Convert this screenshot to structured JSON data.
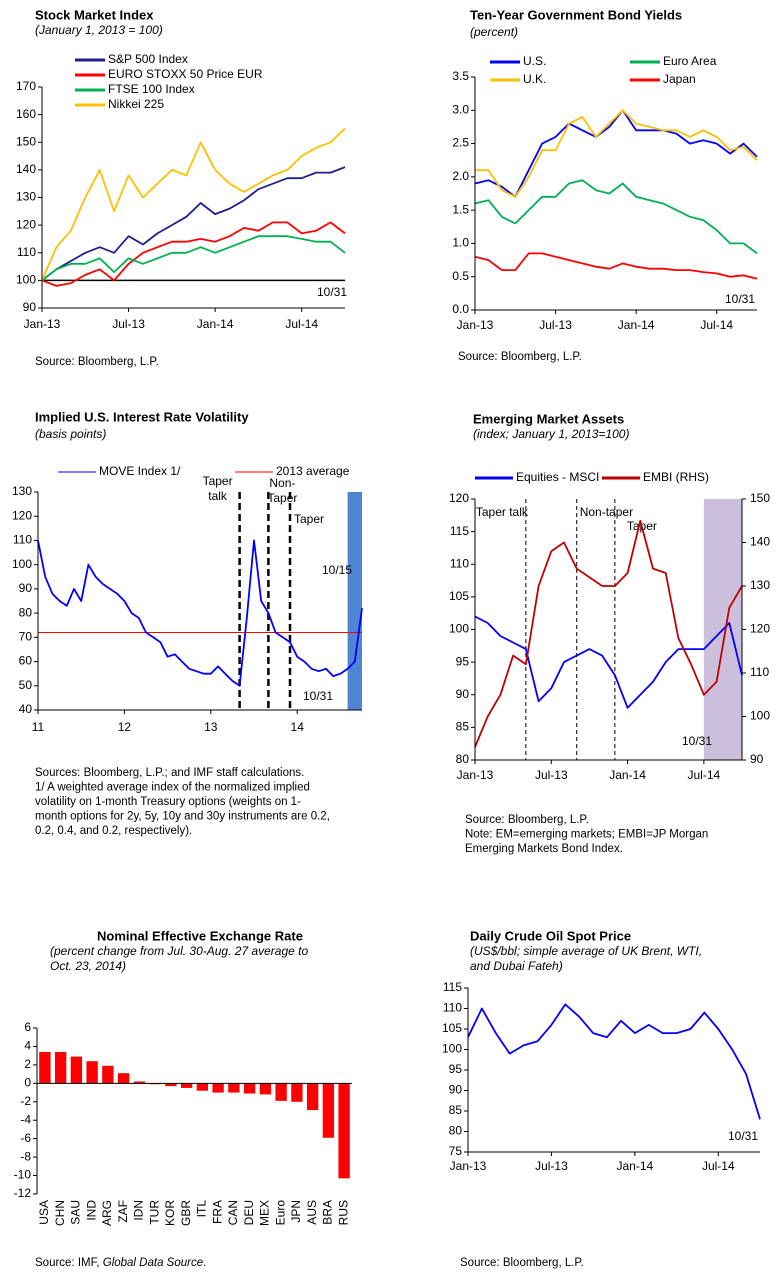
{
  "chart_data": [
    {
      "type": "line",
      "title": "Stock Market Index",
      "subtitle": [
        "(January 1, 2013 = 100)"
      ],
      "x": [
        "2013-01",
        "2013-02",
        "2013-03",
        "2013-04",
        "2013-05",
        "2013-06",
        "2013-07",
        "2013-08",
        "2013-09",
        "2013-10",
        "2013-11",
        "2013-12",
        "2014-01",
        "2014-02",
        "2014-03",
        "2014-04",
        "2014-05",
        "2014-06",
        "2014-07",
        "2014-08",
        "2014-09",
        "2014-10"
      ],
      "series": [
        {
          "name": "S&P 500 Index",
          "color": "#1f1f8f",
          "values": [
            100,
            104,
            107,
            110,
            112,
            110,
            116,
            113,
            117,
            120,
            123,
            128,
            124,
            126,
            129,
            133,
            135,
            137,
            137,
            139,
            139,
            141
          ]
        },
        {
          "name": "EURO STOXX 50 Price EUR",
          "color": "#ff0000",
          "values": [
            100,
            98,
            99,
            102,
            104,
            100,
            106,
            110,
            112,
            114,
            114,
            115,
            114,
            116,
            119,
            118,
            121,
            121,
            117,
            118,
            121,
            117
          ]
        },
        {
          "name": "FTSE 100 Index",
          "color": "#00b050",
          "values": [
            100,
            104,
            106,
            106,
            108,
            103,
            108,
            106,
            108,
            110,
            110,
            112,
            110,
            112,
            114,
            116,
            116,
            116,
            115,
            114,
            114,
            110
          ]
        },
        {
          "name": "Nikkei 225",
          "color": "#ffc000",
          "values": [
            100,
            112,
            118,
            130,
            140,
            125,
            138,
            130,
            135,
            140,
            138,
            150,
            140,
            135,
            132,
            135,
            138,
            140,
            145,
            148,
            150,
            155
          ]
        }
      ],
      "reference_line": {
        "value": 100,
        "color": "#000000"
      },
      "xlim": [
        "2013-01",
        "2014-10"
      ],
      "xticks": [
        {
          "value": "2013-01",
          "label": "Jan-13"
        },
        {
          "value": "2013-07",
          "label": "Jul-13"
        },
        {
          "value": "2014-01",
          "label": "Jan-14"
        },
        {
          "value": "2014-07",
          "label": "Jul-14"
        }
      ],
      "ylim": [
        90,
        170
      ],
      "yticks": [
        90,
        100,
        110,
        120,
        130,
        140,
        150,
        160,
        170
      ],
      "end_label": "10/31",
      "source": "Source: Bloomberg, L.P."
    },
    {
      "type": "line",
      "title": "Ten-Year Government Bond Yields",
      "subtitle": [
        "(percent)"
      ],
      "x": [
        "2013-01",
        "2013-02",
        "2013-03",
        "2013-04",
        "2013-05",
        "2013-06",
        "2013-07",
        "2013-08",
        "2013-09",
        "2013-10",
        "2013-11",
        "2013-12",
        "2014-01",
        "2014-02",
        "2014-03",
        "2014-04",
        "2014-05",
        "2014-06",
        "2014-07",
        "2014-08",
        "2014-09",
        "2014-10"
      ],
      "series": [
        {
          "name": "U.S.",
          "color": "#0000ff",
          "values": [
            1.9,
            1.95,
            1.85,
            1.7,
            2.1,
            2.5,
            2.6,
            2.8,
            2.7,
            2.6,
            2.75,
            3.0,
            2.7,
            2.7,
            2.7,
            2.65,
            2.5,
            2.55,
            2.5,
            2.35,
            2.5,
            2.3
          ]
        },
        {
          "name": "Euro Area",
          "color": "#00b050",
          "values": [
            1.6,
            1.65,
            1.4,
            1.3,
            1.5,
            1.7,
            1.7,
            1.9,
            1.95,
            1.8,
            1.75,
            1.9,
            1.7,
            1.65,
            1.6,
            1.5,
            1.4,
            1.35,
            1.2,
            1.0,
            1.0,
            0.85
          ]
        },
        {
          "name": "U.K.",
          "color": "#ffc000",
          "values": [
            2.1,
            2.1,
            1.8,
            1.7,
            2.0,
            2.4,
            2.4,
            2.8,
            2.9,
            2.6,
            2.8,
            3.0,
            2.8,
            2.75,
            2.7,
            2.7,
            2.6,
            2.7,
            2.6,
            2.4,
            2.45,
            2.25
          ]
        },
        {
          "name": "Japan",
          "color": "#ff0000",
          "values": [
            0.8,
            0.75,
            0.6,
            0.6,
            0.85,
            0.85,
            0.8,
            0.75,
            0.7,
            0.65,
            0.62,
            0.7,
            0.65,
            0.62,
            0.62,
            0.6,
            0.6,
            0.57,
            0.55,
            0.5,
            0.52,
            0.47
          ]
        }
      ],
      "xlim": [
        "2013-01",
        "2014-10"
      ],
      "xticks": [
        {
          "value": "2013-01",
          "label": "Jan-13"
        },
        {
          "value": "2013-07",
          "label": "Jul-13"
        },
        {
          "value": "2014-01",
          "label": "Jan-14"
        },
        {
          "value": "2014-07",
          "label": "Jul-14"
        }
      ],
      "ylim": [
        0,
        3.5
      ],
      "yticks": [
        {
          "value": 0,
          "label": "0.0"
        },
        0.5,
        {
          "value": 1,
          "label": "1.0"
        },
        1.5,
        {
          "value": 2,
          "label": "2.0"
        },
        2.5,
        {
          "value": 3,
          "label": "3.0"
        },
        3.5
      ],
      "end_label": "10/31",
      "source": "Source: Bloomberg, L.P."
    },
    {
      "type": "line",
      "title": "Implied U.S. Interest Rate Volatility",
      "subtitle": [
        "(basis points)"
      ],
      "x": [
        "2011-01",
        "2011-02",
        "2011-03",
        "2011-04",
        "2011-05",
        "2011-06",
        "2011-07",
        "2011-08",
        "2011-09",
        "2011-10",
        "2011-11",
        "2011-12",
        "2012-01",
        "2012-02",
        "2012-03",
        "2012-04",
        "2012-05",
        "2012-06",
        "2012-07",
        "2012-08",
        "2012-09",
        "2012-10",
        "2012-11",
        "2012-12",
        "2013-01",
        "2013-02",
        "2013-03",
        "2013-04",
        "2013-05",
        "2013-06",
        "2013-07",
        "2013-08",
        "2013-09",
        "2013-10",
        "2013-11",
        "2013-12",
        "2014-01",
        "2014-02",
        "2014-03",
        "2014-04",
        "2014-05",
        "2014-06",
        "2014-07",
        "2014-08",
        "2014-09",
        "2014-10"
      ],
      "series": [
        {
          "name": "MOVE  Index 1/",
          "color": "#0000ff",
          "values": [
            110,
            95,
            88,
            85,
            83,
            90,
            85,
            100,
            95,
            92,
            90,
            88,
            85,
            80,
            78,
            72,
            70,
            68,
            62,
            63,
            60,
            57,
            56,
            55,
            55,
            58,
            55,
            52,
            50,
            78,
            110,
            85,
            80,
            72,
            70,
            68,
            62,
            60,
            57,
            56,
            57,
            54,
            55,
            57,
            60,
            82
          ]
        }
      ],
      "reference_line": {
        "name": "2013 average",
        "value": 72,
        "color": "#ff0000"
      },
      "events": [
        {
          "x": "2013-05",
          "label": [
            "Taper",
            "talk"
          ]
        },
        {
          "x": "2013-09",
          "label": [
            "Non-",
            "Taper"
          ]
        },
        {
          "x": "2013-12",
          "label": [
            "Taper"
          ]
        }
      ],
      "shade": {
        "from": "2014-08",
        "to": "2014-10",
        "color": "#4f86d4"
      },
      "xlim": [
        "2011-01",
        "2014-10"
      ],
      "xticks": [
        {
          "value": "2011-01",
          "label": "11"
        },
        {
          "value": "2012-01",
          "label": "12"
        },
        {
          "value": "2013-01",
          "label": "13"
        },
        {
          "value": "2014-01",
          "label": "14"
        }
      ],
      "ylim": [
        40,
        130
      ],
      "yticks": [
        40,
        50,
        60,
        70,
        80,
        90,
        100,
        110,
        120,
        130
      ],
      "peak_label": "10/15",
      "end_label": "10/31",
      "source": "Sources: Bloomberg, L.P.; and IMF staff calculations.",
      "notes": [
        "1/ A weighted average index of the normalized implied",
        "volatility on 1-month Treasury options (weights on 1-",
        "month options for 2y, 5y, 10y and 30y instruments are 0.2,",
        "0.2, 0.4, and 0.2, respectively)."
      ]
    },
    {
      "type": "line",
      "title": "Emerging Market Assets",
      "subtitle": [
        "(index; January 1, 2013=100)"
      ],
      "x": [
        "2013-01",
        "2013-02",
        "2013-03",
        "2013-04",
        "2013-05",
        "2013-06",
        "2013-07",
        "2013-08",
        "2013-09",
        "2013-10",
        "2013-11",
        "2013-12",
        "2014-01",
        "2014-02",
        "2014-03",
        "2014-04",
        "2014-05",
        "2014-06",
        "2014-07",
        "2014-08",
        "2014-09",
        "2014-10"
      ],
      "series": [
        {
          "name": "Equities - MSCI",
          "color": "#0000ff",
          "values": [
            102,
            101,
            99,
            98,
            97,
            89,
            91,
            95,
            96,
            97,
            96,
            93,
            88,
            90,
            92,
            95,
            97,
            97,
            97,
            99,
            101,
            93
          ]
        },
        {
          "name": "EMBI (RHS)",
          "color": "#c00000",
          "axis": "y2",
          "values": [
            93,
            100,
            105,
            114,
            112,
            130,
            138,
            140,
            134,
            132,
            130,
            130,
            133,
            145,
            134,
            133,
            118,
            112,
            105,
            108,
            125,
            130
          ]
        }
      ],
      "events": [
        {
          "x": "2013-05",
          "label": [
            "Taper talk"
          ]
        },
        {
          "x": "2013-09",
          "label": [
            "Non-taper"
          ]
        },
        {
          "x": "2013-12",
          "label": [
            "Taper"
          ]
        }
      ],
      "shade": {
        "from": "2014-07",
        "to": "2014-10",
        "color": "#cbbfdc"
      },
      "xlim": [
        "2013-01",
        "2014-10"
      ],
      "xticks": [
        {
          "value": "2013-01",
          "label": "Jan-13"
        },
        {
          "value": "2013-07",
          "label": "Jul-13"
        },
        {
          "value": "2014-01",
          "label": "Jan-14"
        },
        {
          "value": "2014-07",
          "label": "Jul-14"
        }
      ],
      "ylim": [
        80,
        120
      ],
      "yticks": [
        80,
        85,
        90,
        95,
        100,
        105,
        110,
        115,
        120
      ],
      "y2lim": [
        90,
        150
      ],
      "y2ticks": [
        90,
        100,
        110,
        120,
        130,
        140,
        150
      ],
      "end_label": "10/31",
      "source": "Source: Bloomberg, L.P.",
      "notes": [
        "Note: EM=emerging markets; EMBI=JP Morgan",
        "Emerging Markets Bond Index."
      ]
    },
    {
      "type": "bar",
      "title": "Nominal Effective Exchange Rate",
      "subtitle": [
        "(percent change from Jul. 30-Aug. 27 average to",
        "Oct. 23, 2014)"
      ],
      "categories": [
        "USA",
        "CHN",
        "SAU",
        "IND",
        "ARG",
        "ZAF",
        "IDN",
        "TUR",
        "KOR",
        "GBR",
        "ITL",
        "FRA",
        "CAN",
        "DEU",
        "MEX",
        "Euro",
        "JPN",
        "AUS",
        "BRA",
        "RUS"
      ],
      "values": [
        3.4,
        3.4,
        2.9,
        2.4,
        1.9,
        1.1,
        0.2,
        -0.1,
        -0.3,
        -0.5,
        -0.8,
        -1.0,
        -1.0,
        -1.1,
        -1.2,
        -1.9,
        -2.0,
        -2.9,
        -5.9,
        -10.3
      ],
      "color": "#ff0000",
      "ylim": [
        -12,
        6
      ],
      "yticks": [
        -12,
        -10,
        -8,
        -6,
        -4,
        -2,
        0,
        2,
        4,
        6
      ],
      "source": [
        "Source: IMF, ",
        "Global Data Source",
        "."
      ]
    },
    {
      "type": "line",
      "title": "Daily Crude Oil Spot Price",
      "subtitle": [
        "(US$/bbl; simple average of UK Brent, WTI,",
        "and Dubai Fateh)"
      ],
      "x": [
        "2013-01",
        "2013-02",
        "2013-03",
        "2013-04",
        "2013-05",
        "2013-06",
        "2013-07",
        "2013-08",
        "2013-09",
        "2013-10",
        "2013-11",
        "2013-12",
        "2014-01",
        "2014-02",
        "2014-03",
        "2014-04",
        "2014-05",
        "2014-06",
        "2014-07",
        "2014-08",
        "2014-09",
        "2014-10"
      ],
      "series": [
        {
          "color": "#0000ff",
          "values": [
            103,
            110,
            104,
            99,
            101,
            102,
            106,
            111,
            108,
            104,
            103,
            107,
            104,
            106,
            104,
            104,
            105,
            109,
            105,
            100,
            94,
            83
          ]
        }
      ],
      "xlim": [
        "2013-01",
        "2014-10"
      ],
      "xticks": [
        {
          "value": "2013-01",
          "label": "Jan-13"
        },
        {
          "value": "2013-07",
          "label": "Jul-13"
        },
        {
          "value": "2014-01",
          "label": "Jan-14"
        },
        {
          "value": "2014-07",
          "label": "Jul-14"
        }
      ],
      "ylim": [
        75,
        115
      ],
      "yticks": [
        75,
        80,
        85,
        90,
        95,
        100,
        105,
        110,
        115
      ],
      "end_label": "10/31",
      "source": "Source: Bloomberg, L.P."
    }
  ]
}
